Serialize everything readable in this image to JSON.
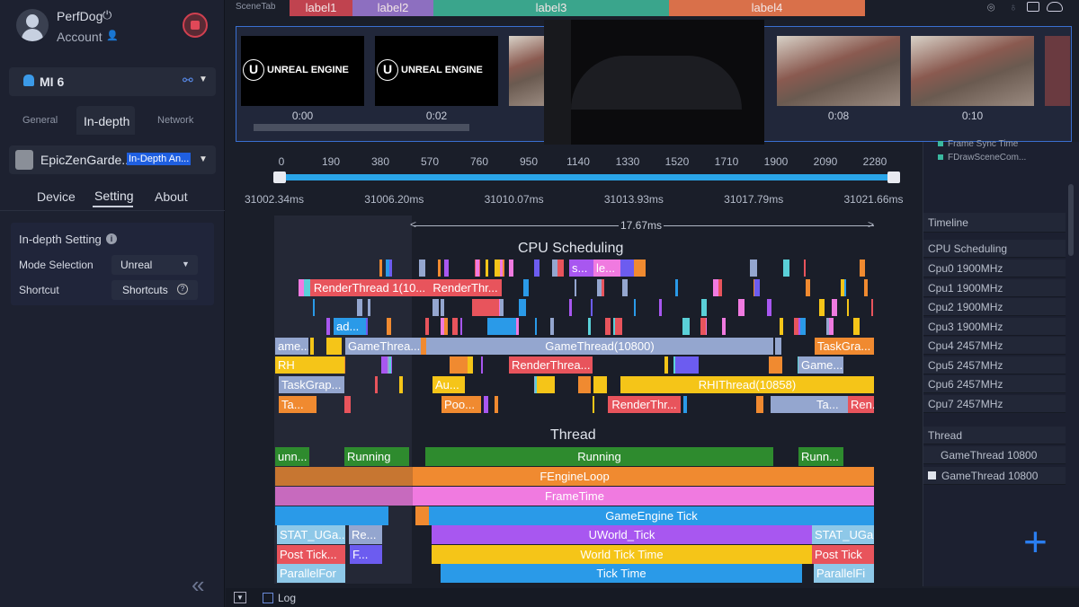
{
  "sidebar": {
    "user_name": "PerfDog",
    "account_label": "Account",
    "device": "MI 6",
    "tabs": [
      "General",
      "In-depth",
      "Network"
    ],
    "active_tab": "In-depth",
    "app_name": "EpicZenGarde...",
    "app_badge": "In-Depth An...",
    "sub_tabs": [
      "Device",
      "Setting",
      "About"
    ],
    "active_sub_tab": "Setting",
    "settings": {
      "title": "In-depth Setting",
      "mode_label": "Mode Selection",
      "mode_value": "Unreal",
      "shortcut_label": "Shortcut",
      "shortcut_button": "Shortcuts"
    },
    "collapse_icon": "double-chevron-left-icon"
  },
  "scene_tabs": {
    "title": "SceneTab",
    "labels": [
      {
        "text": "label1",
        "color": "#c0434f"
      },
      {
        "text": "label2",
        "color": "#8d6fc0"
      },
      {
        "text": "label3",
        "color": "#3aa58c"
      },
      {
        "text": "label4",
        "color": "#d9704a"
      }
    ]
  },
  "toolbar_icons": [
    "location-pin-icon",
    "bulb-icon",
    "folder-icon",
    "cloud-icon"
  ],
  "thumbnails": [
    {
      "time": "0:00",
      "logo": "UNREAL ENGINE"
    },
    {
      "time": "0:02",
      "logo": "UNREAL ENGINE"
    },
    {
      "time": "",
      "logo": ""
    },
    {
      "time": "0:08",
      "logo": ""
    },
    {
      "time": "0:10",
      "logo": ""
    }
  ],
  "ruler": {
    "ticks": [
      "0",
      "190",
      "380",
      "570",
      "760",
      "950",
      "1140",
      "1330",
      "1520",
      "1710",
      "1900",
      "2090",
      "2280"
    ],
    "ms_labels": [
      "31002.34ms",
      "31006.20ms",
      "31010.07ms",
      "31013.93ms",
      "31017.79ms",
      "31021.66ms"
    ],
    "selection": "17.67ms"
  },
  "cpu_title": "CPU Scheduling",
  "thread_title": "Thread",
  "colors": {
    "red": "#e8545c",
    "gray": "#94a6cf",
    "orange": "#f08a30",
    "yellow": "#f5c518",
    "purple": "#a857f0",
    "pink": "#f07ae0",
    "violet": "#6c5cf0",
    "blue": "#2a9ae8",
    "lightblue": "#8ec8e8",
    "green": "#2e8b2e",
    "accent": "#2aa5e8"
  },
  "cpu_bars": [
    {
      "label": "s...",
      "color": "purple"
    },
    {
      "label": "le...",
      "color": "pink"
    },
    {
      "label": "",
      "color": "violet"
    },
    {
      "label": "",
      "color": "orange"
    },
    {
      "label": "RenderThread 1(10...",
      "color": "red"
    },
    {
      "label": "RenderThr...",
      "color": "red"
    },
    {
      "label": "",
      "color": "red"
    },
    {
      "label": "ad...",
      "color": "blue"
    },
    {
      "label": "",
      "color": "blue"
    },
    {
      "label": "ame...",
      "color": "gray"
    },
    {
      "label": "",
      "color": "yellow"
    },
    {
      "label": "GameThrea...",
      "color": "gray"
    },
    {
      "label": "",
      "color": "orange"
    },
    {
      "label": "GameThread(10800)",
      "color": "gray"
    },
    {
      "label": "TaskGra...",
      "color": "orange"
    },
    {
      "label": "RH",
      "color": "yellow"
    },
    {
      "label": "",
      "color": "orange"
    },
    {
      "label": "RenderThrea...",
      "color": "red"
    },
    {
      "label": "",
      "color": "violet"
    },
    {
      "label": "",
      "color": "orange"
    },
    {
      "label": "Game...",
      "color": "gray"
    },
    {
      "label": "TaskGrap...",
      "color": "gray"
    },
    {
      "label": "Au...",
      "color": "yellow"
    },
    {
      "label": "",
      "color": "yellow"
    },
    {
      "label": "",
      "color": "orange"
    },
    {
      "label": "",
      "color": "yellow"
    },
    {
      "label": "RHIThread(10858)",
      "color": "yellow"
    },
    {
      "label": "Ta...",
      "color": "orange"
    },
    {
      "label": "Poo...",
      "color": "orange"
    },
    {
      "label": "RenderThr...",
      "color": "red"
    },
    {
      "label": "",
      "color": "gray"
    },
    {
      "label": "Ta...",
      "color": "gray"
    },
    {
      "label": "Ren...",
      "color": "red"
    }
  ],
  "thread_bars": [
    {
      "label": "unn...",
      "color": "green"
    },
    {
      "label": "Running",
      "color": "green"
    },
    {
      "label": "Running",
      "color": "green"
    },
    {
      "label": "Runn...",
      "color": "green"
    },
    {
      "label": "FEngineLoop",
      "color": "orange"
    },
    {
      "label": "FrameTime",
      "color": "pink"
    },
    {
      "label": "",
      "color": "blue"
    },
    {
      "label": "",
      "color": "orange"
    },
    {
      "label": "GameEngine Tick",
      "color": "blue"
    },
    {
      "label": "STAT_UGa...",
      "color": "lightblue"
    },
    {
      "label": "Re...",
      "color": "gray"
    },
    {
      "label": "UWorld_Tick",
      "color": "purple"
    },
    {
      "label": "STAT_UGa",
      "color": "lightblue"
    },
    {
      "label": "Post Tick...",
      "color": "red"
    },
    {
      "label": "F...",
      "color": "violet"
    },
    {
      "label": "World Tick Time",
      "color": "yellow"
    },
    {
      "label": "Post Tick",
      "color": "red"
    },
    {
      "label": "ParallelFor",
      "color": "lightblue"
    },
    {
      "label": "Tick Time",
      "color": "blue"
    },
    {
      "label": "ParallelFi",
      "color": "lightblue"
    }
  ],
  "right_panel": {
    "legend": [
      {
        "text": "Frame Sync Time",
        "color": "#3ab8a0"
      },
      {
        "text": "FDrawSceneCom...",
        "color": "#3ab8a0"
      }
    ],
    "timeline": "Timeline",
    "cpu_header": "CPU Scheduling",
    "cpus": [
      "Cpu0  1900MHz",
      "Cpu1  1900MHz",
      "Cpu2  1900MHz",
      "Cpu3  1900MHz",
      "Cpu4  2457MHz",
      "Cpu5  2457MHz",
      "Cpu6  2457MHz",
      "Cpu7  2457MHz"
    ],
    "thread_header": "Thread",
    "threads": [
      "GameThread 10800",
      "GameThread 10800"
    ]
  },
  "bottom": {
    "log_label": "Log"
  }
}
